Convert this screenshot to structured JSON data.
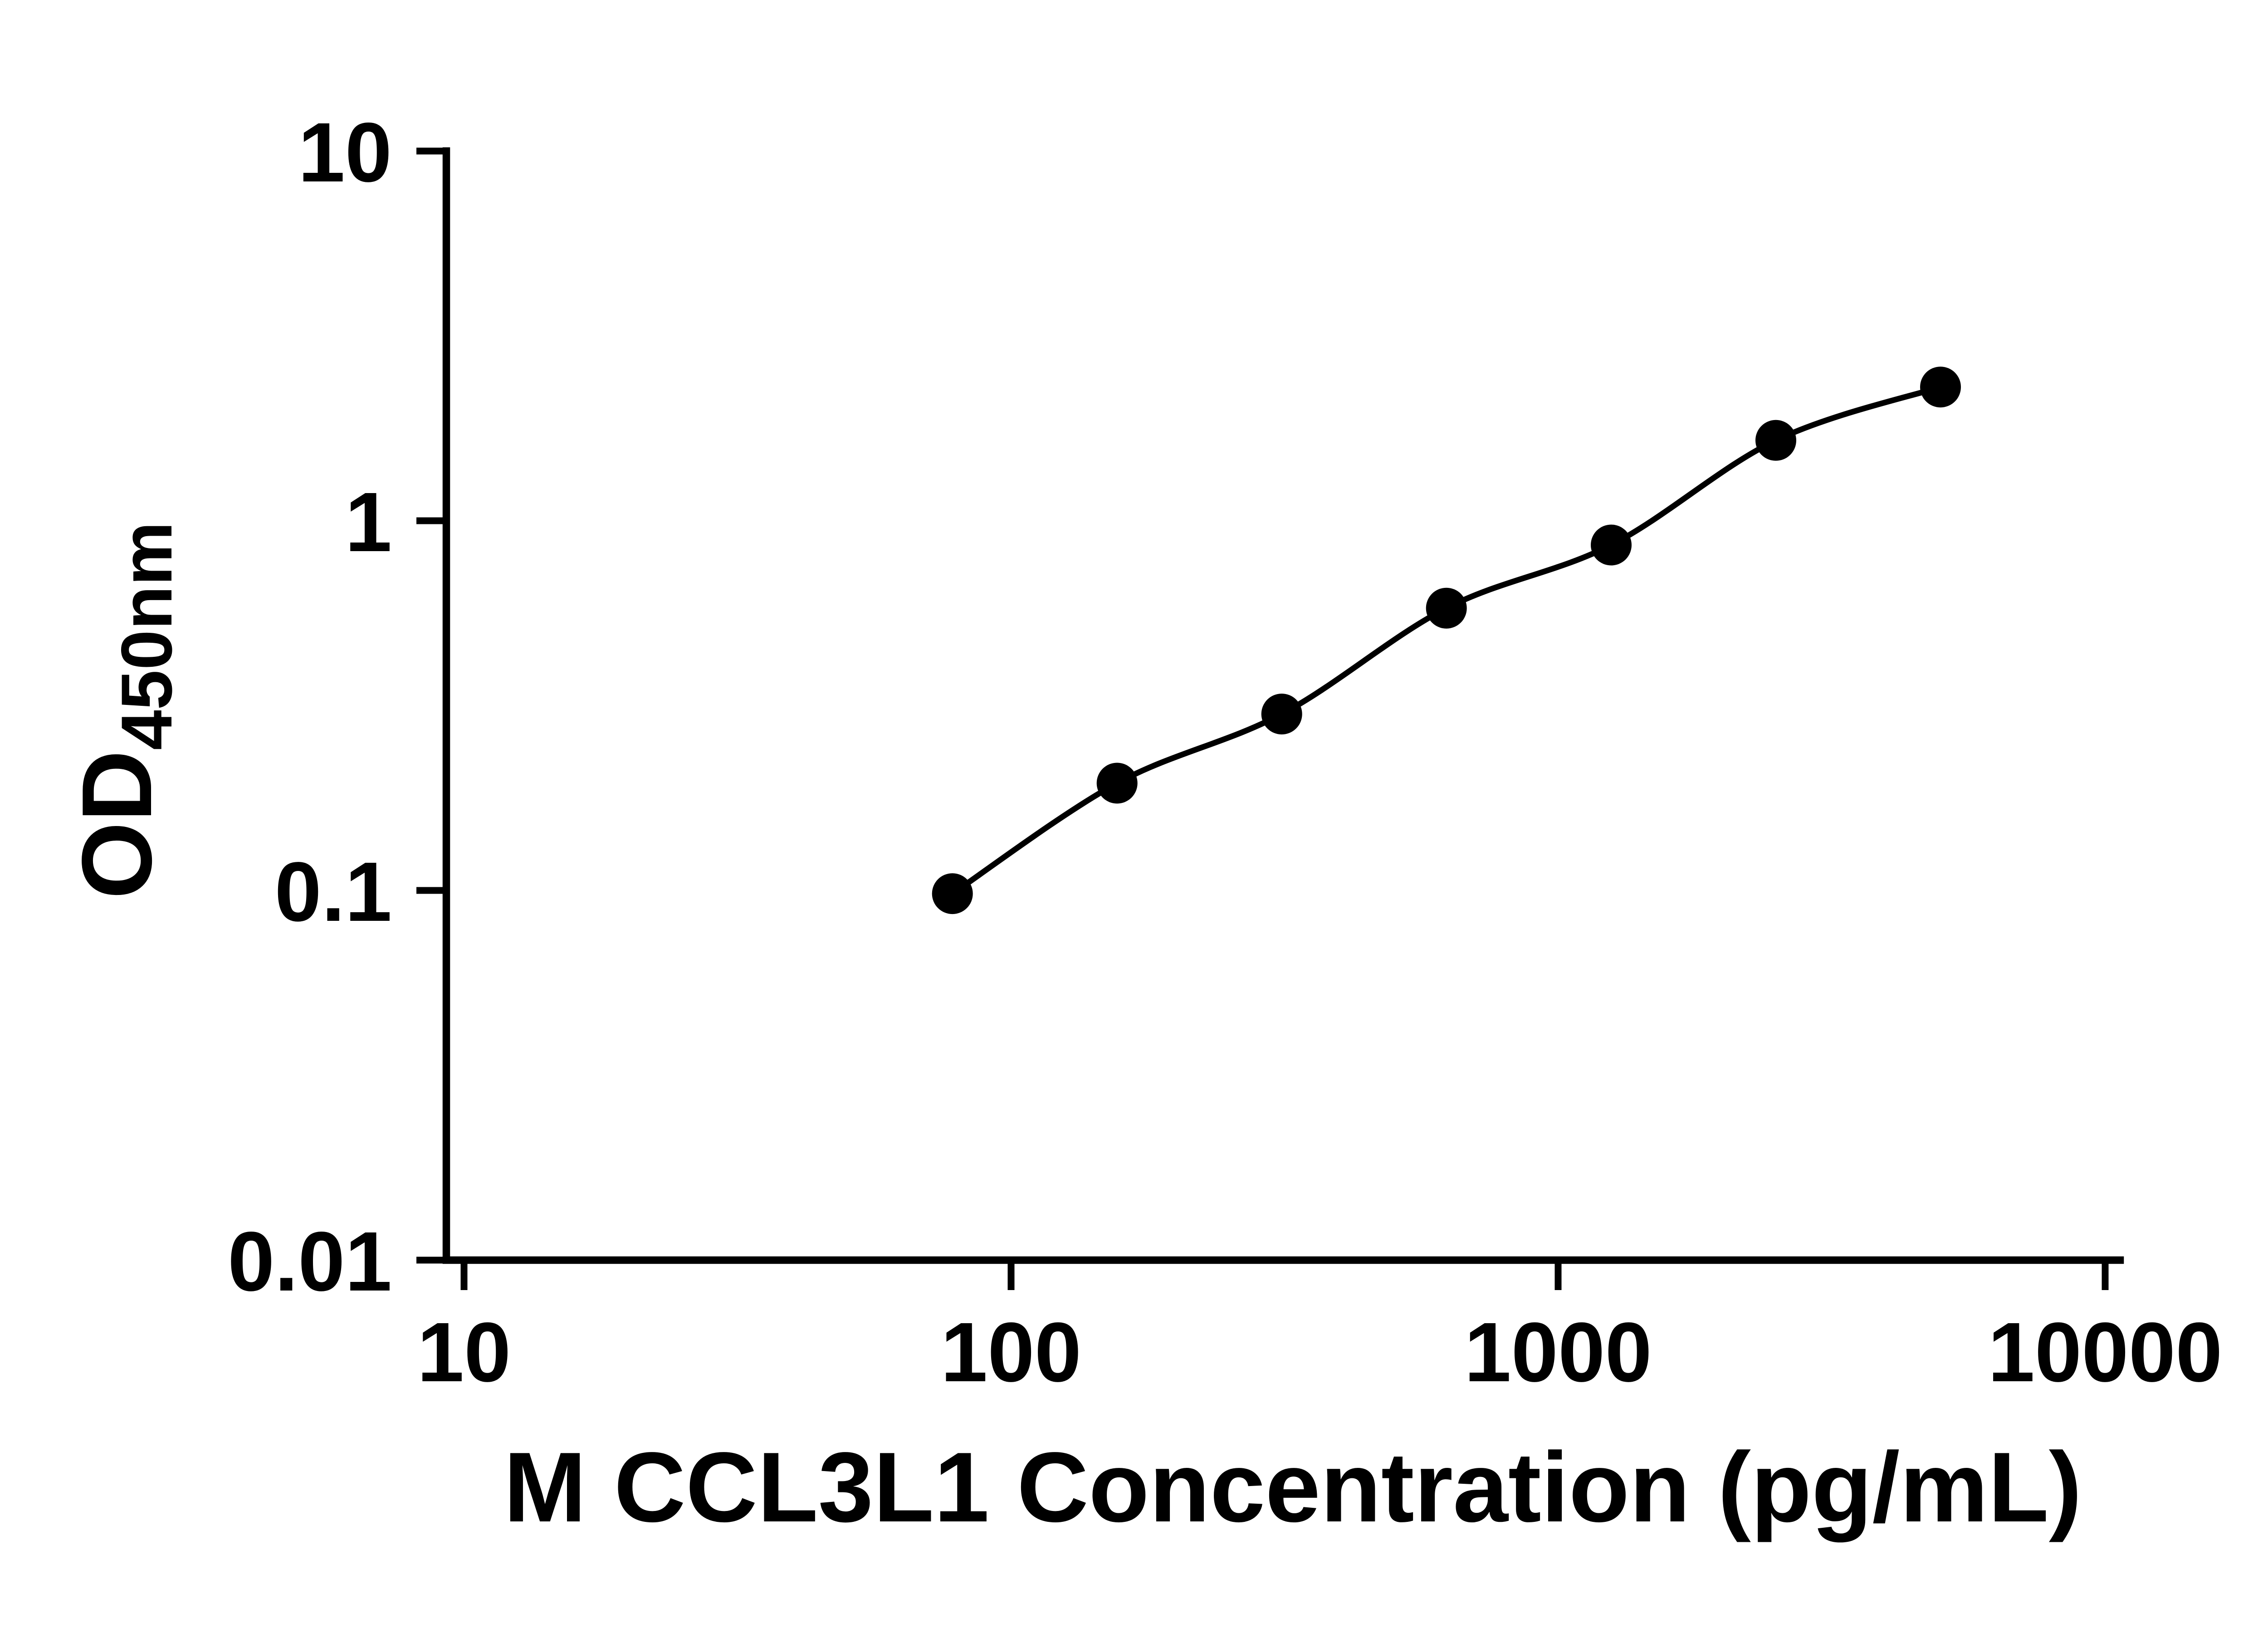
{
  "figure": {
    "background_color": "#ffffff",
    "axis_color": "#000000"
  },
  "chart_data": {
    "type": "scatter",
    "title": "",
    "xlabel": "M CCL3L1 Concentration (pg/mL)",
    "ylabel": "OD450nm",
    "ylabel_main": "OD",
    "ylabel_sub": "450nm",
    "xscale": "log10",
    "yscale": "log10",
    "xlim": [
      10,
      10000
    ],
    "ylim": [
      0.01,
      10
    ],
    "x_ticks": [
      10,
      100,
      1000,
      10000
    ],
    "x_tick_labels": [
      "10",
      "100",
      "1000",
      "10000"
    ],
    "y_ticks": [
      10,
      1,
      0.1,
      0.01
    ],
    "y_tick_labels": [
      "10",
      "1",
      "0.1",
      "0.01"
    ],
    "grid": false,
    "legend": "none",
    "series": [
      {
        "name": "standard-curve",
        "marker": "filled-circle",
        "marker_color": "#000000",
        "line_color": "#000000",
        "fit": "smooth-curve",
        "x": [
          78.125,
          156.25,
          312.5,
          625,
          1250,
          2500,
          5000
        ],
        "y": [
          0.098,
          0.195,
          0.3,
          0.58,
          0.86,
          1.65,
          2.3
        ]
      }
    ]
  }
}
